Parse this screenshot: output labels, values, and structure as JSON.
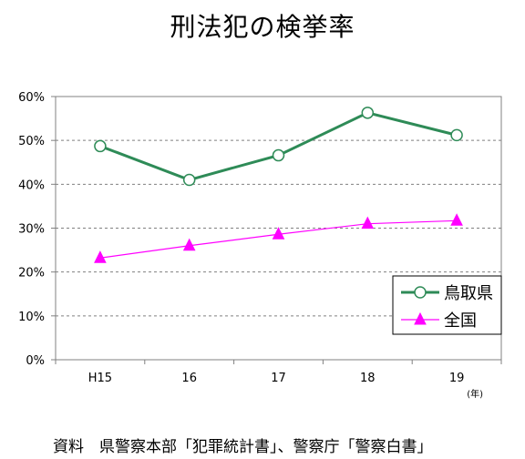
{
  "title": "刑法犯の検挙率",
  "source": "資料　県警察本部「犯罪統計書」、警察庁「警察白書」",
  "chart_data": {
    "type": "line",
    "categories": [
      "H15",
      "16",
      "17",
      "18",
      "19"
    ],
    "x_unit": "(年)",
    "y_ticks": [
      "0%",
      "10%",
      "20%",
      "30%",
      "40%",
      "50%",
      "60%"
    ],
    "ylim": [
      0,
      60
    ],
    "grid": true,
    "legend_position": "bottom-right",
    "series": [
      {
        "name": "鳥取県",
        "values": [
          48.7,
          41.0,
          46.6,
          56.3,
          51.2
        ],
        "color": "#2e8b57",
        "marker": "circle",
        "marker_fill": "#ffffff"
      },
      {
        "name": "全国",
        "values": [
          23.2,
          26.0,
          28.6,
          31.0,
          31.7
        ],
        "color": "#ff00ff",
        "marker": "triangle",
        "marker_fill": "#ff00ff"
      }
    ]
  }
}
